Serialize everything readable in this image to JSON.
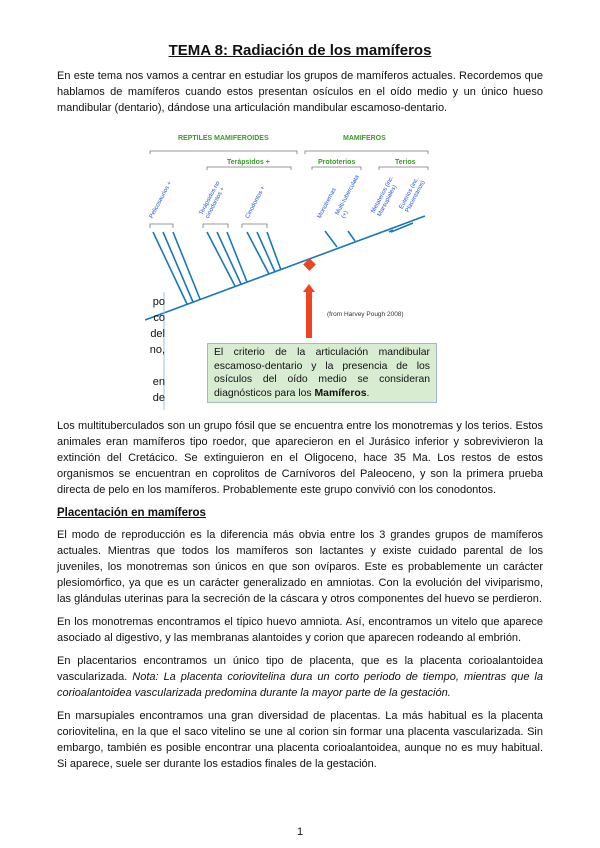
{
  "title": "TEMA 8:  Radiación de los mamíferos",
  "intro": "En este tema nos vamos a centrar en estudiar los grupos de mamíferos actuales. Recordemos que hablamos de mamíferos cuando estos presentan osículos en el oído medio y un único hueso mandibular (dentario), dándose una articulación mandibular escamoso-dentario.",
  "figure": {
    "groups": {
      "reptiles": "REPTILES MAMIFEROIDES",
      "terapsidos": "Terápsidos +",
      "mamiferos": "MAMIFEROS",
      "prototerios": "Prototerios",
      "terios": "Terios"
    },
    "taxa": [
      "Pelicosaurios +",
      "Terápsidos no cinodontos +",
      "Cinodontos +",
      "Monotremas",
      "Multi-tuberculata (+)",
      "Metaterios (inc. Marsupiales)",
      "Euterios (inc. Placentarios)"
    ],
    "credit": "(from Harvey Pough 2008)",
    "note_pre": "El criterio de la articulación mandibular escamoso-dentario y la presencia de los osículos del oído medio se consideran diagnósticos para los ",
    "note_bold": "Mamíferos",
    "note_post": ".",
    "fragments": [
      "po",
      "co",
      "del",
      "no,",
      "",
      "en",
      "de"
    ],
    "colors": {
      "group": "#3a9a2a",
      "taxa": "#2255cc",
      "tree": "#1a78b8",
      "marker": "#ee4422",
      "note_bg": "#d8ecd2"
    }
  },
  "p1": "Los multituberculados son un grupo fósil que se encuentra entre los monotremas y los terios. Estos animales eran mamíferos tipo roedor, que aparecieron en el Jurásico inferior y sobrevivieron la extinción del Cretácico. Se extinguieron en el Oligoceno, hace 35 Ma. Los restos de estos organismos se encuentran en coprolitos de Carnívoros del Paleoceno, y son la primera prueba directa de pelo en los mamíferos. Probablemente este grupo convivió con los conodontos.",
  "h1": "Placentación en mamíferos",
  "p2": "El modo de reproducción es la diferencia más obvia entre los 3 grandes grupos de mamíferos actuales. Mientras que todos los mamíferos son lactantes y existe cuidado parental de los juveniles, los monotremas son únicos en que son ovíparos. Este es probablemente un carácter plesiomórfico, ya que es un carácter generalizado en amniotas. Con la evolución del viviparismo, las glándulas uterinas para la secreción de la cáscara y otros componentes del huevo se perdieron.",
  "p3": "En los monotremas encontramos el típico huevo amniota. Así, encontramos un vitelo que aparece asociado al digestivo, y las membranas alantoides y corion que aparecen rodeando al embrión.",
  "p4a": "En placentarios encontramos un único tipo de placenta, que es la placenta corioalantoidea vascularizada. ",
  "p4b": "Nota: La placenta coriovitelina dura un corto periodo de tiempo, mientras que la corioalantoidea vascularizada predomina durante la mayor parte de la gestación.",
  "p5": "En marsupiales encontramos una gran diversidad de placentas. La más habitual es la placenta coriovitelina, en la que el saco vitelino se une al corion sin formar una placenta vascularizada. Sin embargo, también es posible encontrar una placenta corioalantoidea, aunque no es muy habitual. Si aparece, suele ser durante los estadios finales de la gestación.",
  "page_number": "1"
}
